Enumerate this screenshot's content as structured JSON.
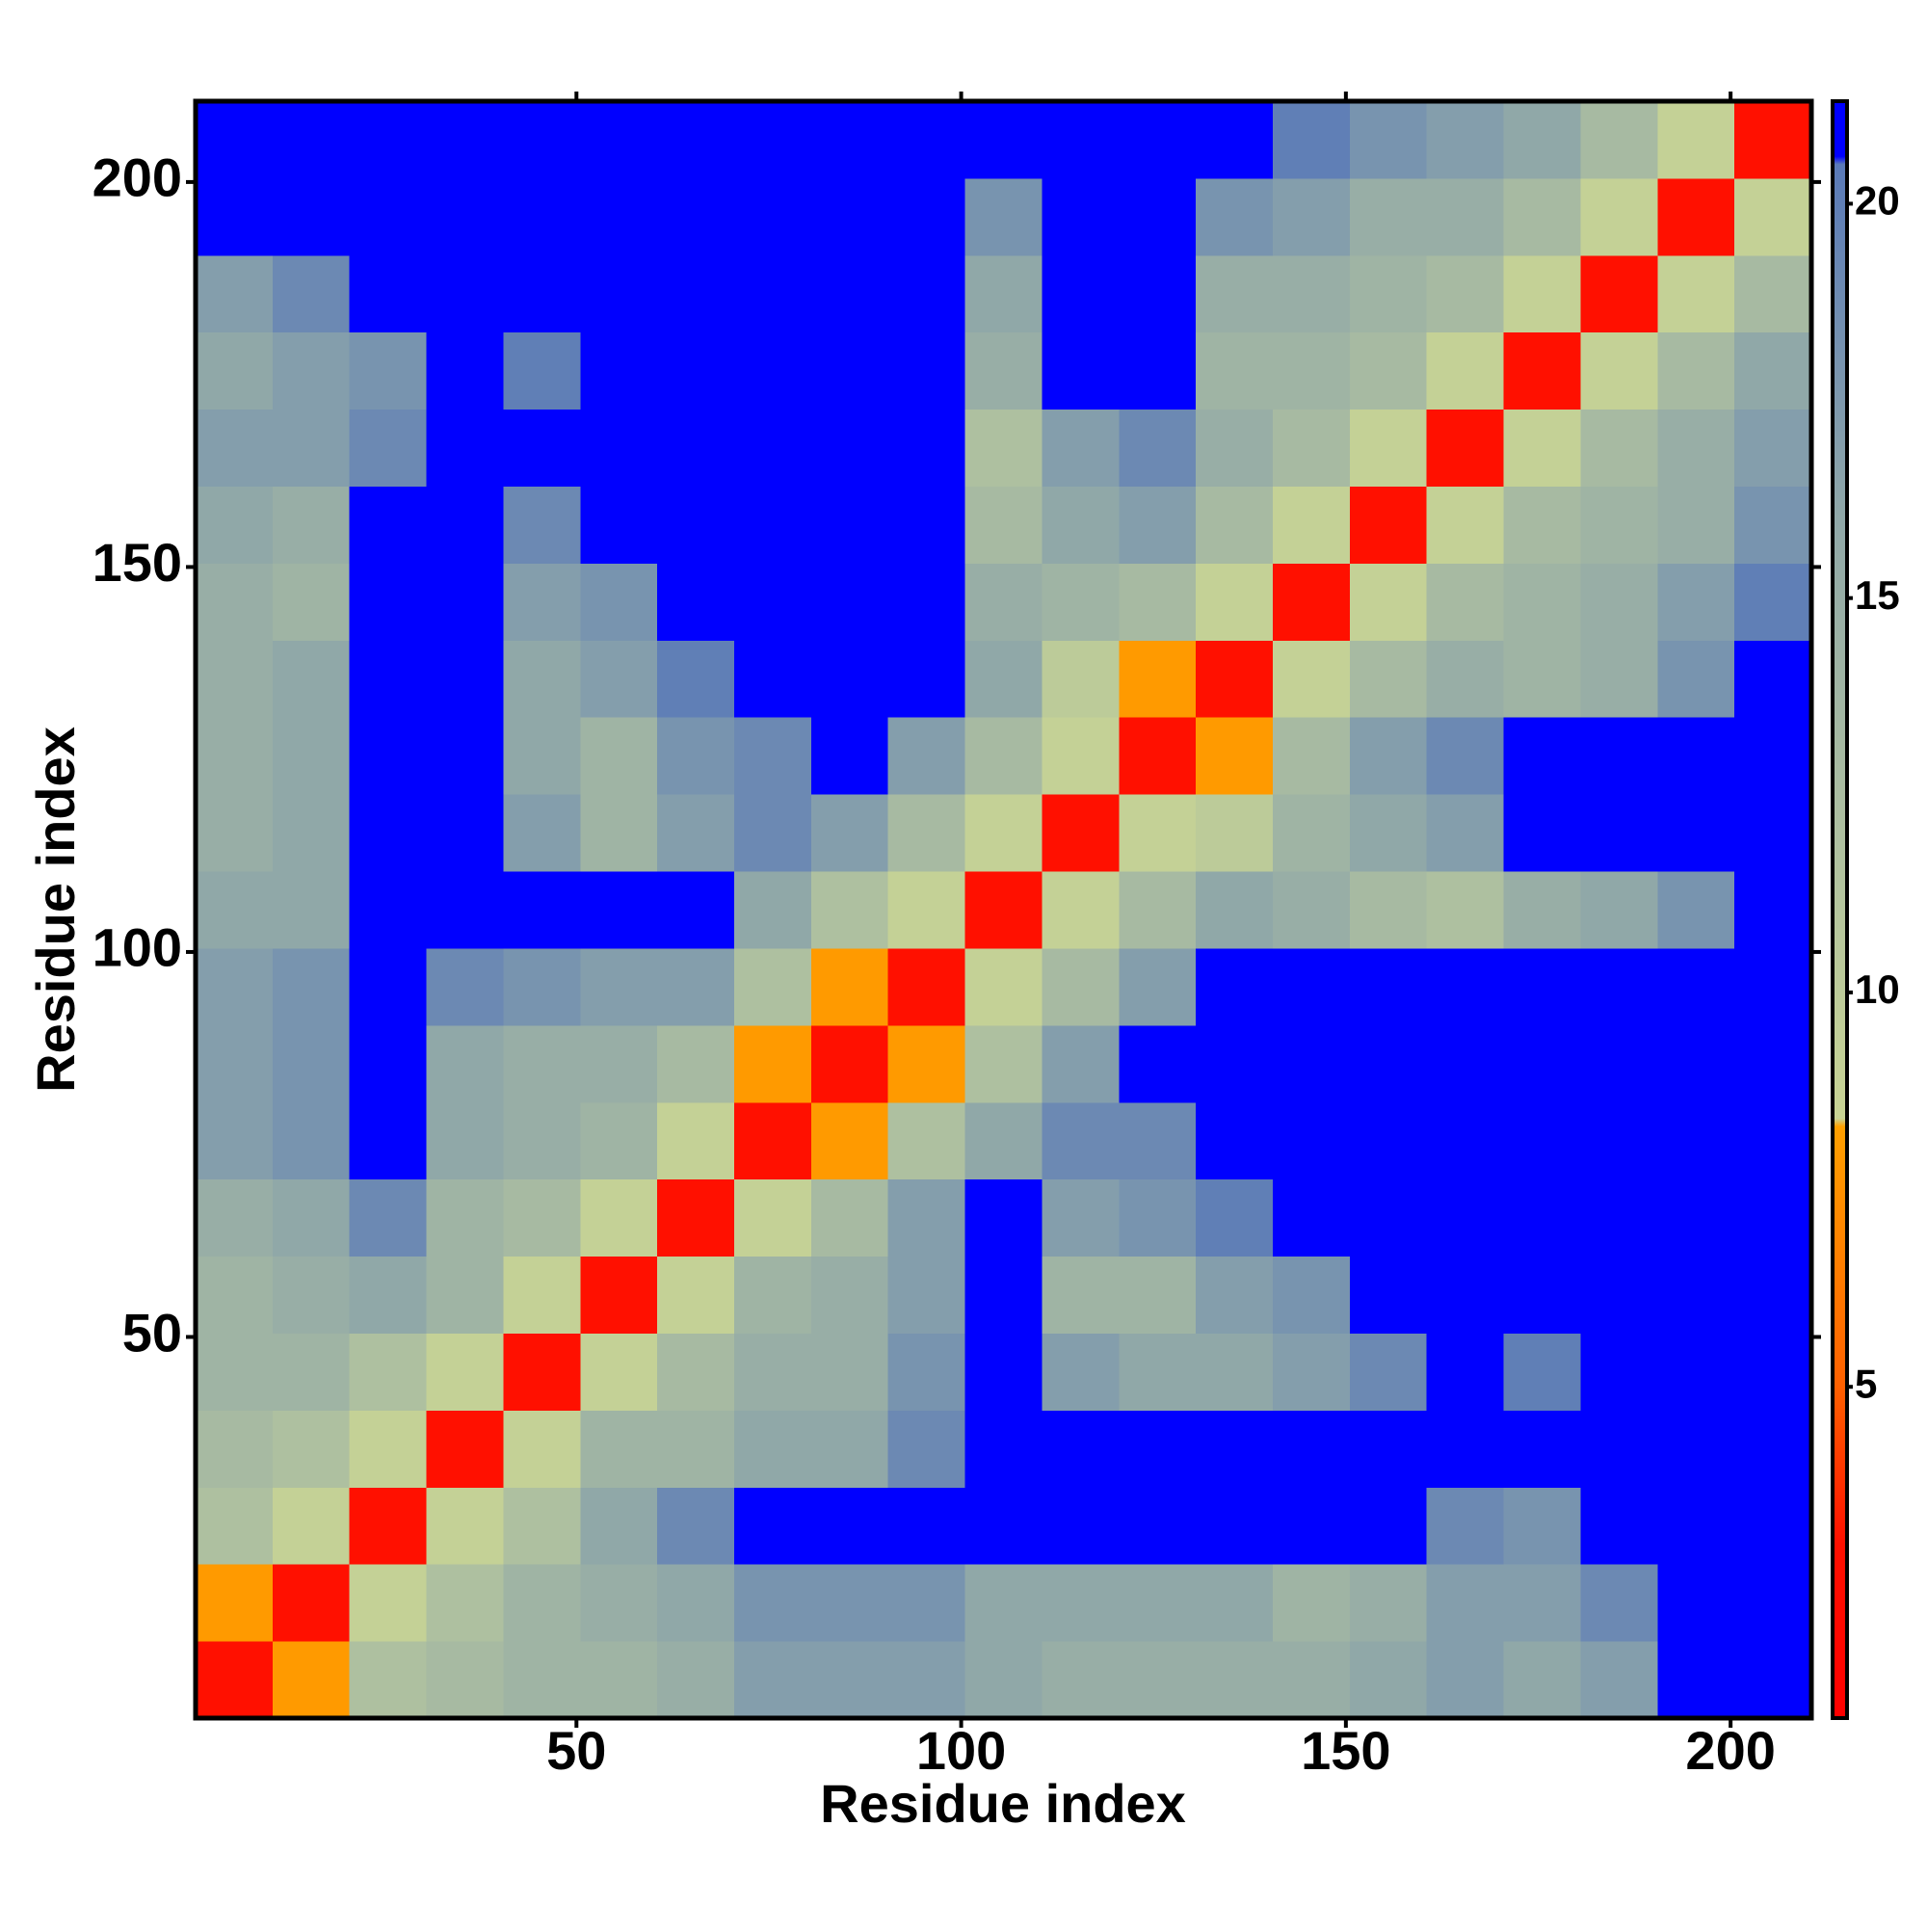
{
  "chart_data": {
    "type": "heatmap",
    "xlabel": "Residue index",
    "ylabel": "Residue index",
    "bins": [
      0.5,
      10.5,
      20.5,
      30.5,
      40.5,
      50.5,
      60.5,
      70.5,
      80.5,
      90.5,
      100.5,
      110.5,
      120.5,
      130.5,
      140.5,
      150.5,
      160.5,
      170.5,
      180.5,
      190.5,
      200.5,
      210.5
    ],
    "values": [
      [
        3,
        8,
        12,
        13,
        14,
        14,
        15,
        17,
        17,
        17,
        16,
        15,
        15,
        15,
        15,
        16,
        17,
        16,
        17,
        21,
        21
      ],
      [
        8,
        3,
        9,
        12,
        14,
        15,
        16,
        18,
        18,
        18,
        16,
        16,
        16,
        16,
        14,
        15,
        17,
        17,
        19,
        21,
        21
      ],
      [
        12,
        9,
        3,
        9,
        12,
        16,
        19,
        21,
        21,
        21,
        21,
        21,
        21,
        21,
        21,
        21,
        19,
        18,
        21,
        21,
        21
      ],
      [
        13,
        12,
        9,
        3,
        9,
        14,
        14,
        16,
        16,
        19,
        21,
        21,
        21,
        21,
        21,
        21,
        21,
        21,
        21,
        21,
        21
      ],
      [
        14,
        14,
        12,
        9,
        3,
        9,
        13,
        15,
        15,
        18,
        21,
        17,
        16,
        16,
        17,
        19,
        21,
        20,
        21,
        21,
        21
      ],
      [
        14,
        15,
        16,
        14,
        9,
        3,
        9,
        14,
        15,
        17,
        21,
        14,
        14,
        17,
        18,
        21,
        21,
        21,
        21,
        21,
        21
      ],
      [
        15,
        16,
        19,
        14,
        13,
        9,
        3,
        9,
        13,
        17,
        21,
        17,
        18,
        20,
        21,
        21,
        21,
        21,
        21,
        21,
        21
      ],
      [
        17,
        18,
        21,
        16,
        15,
        14,
        9,
        3,
        8,
        12,
        16,
        19,
        19,
        21,
        21,
        21,
        21,
        21,
        21,
        21,
        21
      ],
      [
        17,
        18,
        21,
        16,
        15,
        15,
        13,
        8,
        3,
        8,
        12,
        17,
        21,
        21,
        21,
        21,
        21,
        21,
        21,
        21,
        21
      ],
      [
        17,
        18,
        21,
        19,
        18,
        17,
        17,
        12,
        8,
        3,
        9,
        13,
        17,
        21,
        21,
        21,
        21,
        21,
        21,
        21,
        21
      ],
      [
        16,
        16,
        21,
        21,
        21,
        21,
        21,
        16,
        12,
        9,
        3,
        9,
        13,
        16,
        15,
        13,
        12,
        15,
        16,
        18,
        21
      ],
      [
        15,
        16,
        21,
        21,
        17,
        14,
        17,
        19,
        17,
        13,
        9,
        3,
        9,
        10,
        14,
        16,
        17,
        21,
        21,
        21,
        21
      ],
      [
        15,
        16,
        21,
        21,
        16,
        14,
        18,
        19,
        21,
        17,
        13,
        9,
        3,
        8,
        13,
        17,
        19,
        21,
        21,
        21,
        21
      ],
      [
        15,
        16,
        21,
        21,
        16,
        17,
        20,
        21,
        21,
        21,
        16,
        10,
        8,
        3,
        9,
        13,
        15,
        14,
        15,
        18,
        21
      ],
      [
        15,
        14,
        21,
        21,
        17,
        18,
        21,
        21,
        21,
        21,
        15,
        14,
        13,
        9,
        3,
        9,
        13,
        14,
        15,
        17,
        20
      ],
      [
        16,
        15,
        21,
        21,
        19,
        21,
        21,
        21,
        21,
        21,
        13,
        16,
        17,
        13,
        9,
        3,
        9,
        13,
        14,
        15,
        18
      ],
      [
        17,
        17,
        19,
        21,
        21,
        21,
        21,
        21,
        21,
        21,
        12,
        17,
        19,
        15,
        13,
        9,
        3,
        9,
        13,
        15,
        17
      ],
      [
        16,
        17,
        18,
        21,
        20,
        21,
        21,
        21,
        21,
        21,
        15,
        21,
        21,
        14,
        14,
        13,
        9,
        3,
        9,
        13,
        16
      ],
      [
        17,
        19,
        21,
        21,
        21,
        21,
        21,
        21,
        21,
        21,
        16,
        21,
        21,
        15,
        15,
        14,
        13,
        9,
        3,
        9,
        13
      ],
      [
        21,
        21,
        21,
        21,
        21,
        21,
        21,
        21,
        21,
        21,
        18,
        21,
        21,
        18,
        17,
        15,
        15,
        13,
        9,
        3,
        9
      ],
      [
        21,
        21,
        21,
        21,
        21,
        21,
        21,
        21,
        21,
        21,
        21,
        21,
        21,
        21,
        20,
        18,
        17,
        16,
        13,
        9,
        3
      ]
    ],
    "xlim": [
      0.5,
      210.5
    ],
    "ylim": [
      0.5,
      210.5
    ],
    "xticks": [
      50,
      100,
      150,
      200
    ],
    "yticks": [
      50,
      100,
      150,
      200
    ],
    "clim": [
      0.8,
      21.3
    ],
    "cticks": [
      5,
      10,
      15,
      20
    ],
    "colorscale": [
      {
        "value": 0.8,
        "color": "#ff0000"
      },
      {
        "value": 3,
        "color": "#ff1000"
      },
      {
        "value": 5,
        "color": "#ff6000"
      },
      {
        "value": 8.3,
        "color": "#ffa000"
      },
      {
        "value": 8.4,
        "color": "#c8d494"
      },
      {
        "value": 12,
        "color": "#aec0a0"
      },
      {
        "value": 16,
        "color": "#90a8a8"
      },
      {
        "value": 20.5,
        "color": "#5a7ab8"
      },
      {
        "value": 20.6,
        "color": "#0000ff"
      },
      {
        "value": 21.3,
        "color": "#0000ff"
      }
    ]
  }
}
